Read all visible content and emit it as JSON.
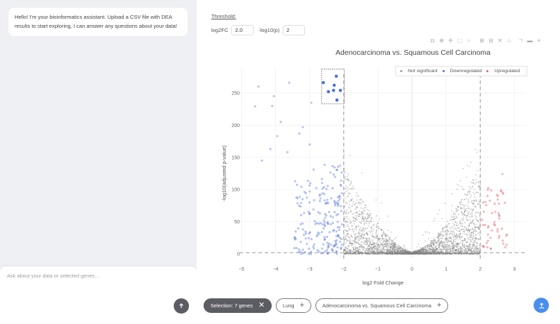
{
  "chat": {
    "assistant_message": "Hello! I'm your bioinformatics assistant. Upload a CSV file with DEA results to start exploring, I can answer any questions about your data!",
    "input_placeholder": "Ask about your data or selected genes...",
    "send_icon": "arrow-up-icon"
  },
  "threshold": {
    "title": "Threshold:",
    "log2fc_label": "log2FC",
    "log2fc_value": "2.0",
    "pval_label": "-log10(p)",
    "pval_value": "2"
  },
  "modebar": [
    "camera-icon",
    "zoom-icon",
    "pan-icon",
    "box-select-icon",
    "lasso-icon",
    "zoom-in-icon",
    "zoom-out-icon",
    "autoscale-icon",
    "reset-axes-icon",
    "spike-lines-icon",
    "hover-closest-icon",
    "hover-compare-icon"
  ],
  "chips": {
    "selection": "Selection: 7 genes",
    "tissue": "Lung",
    "comparison": "Adenocarcinoma vs. Squamous Cell Carcinoma"
  },
  "colors": {
    "not_significant": "#7f7f7f",
    "downregulated": "#4a6fdc",
    "upregulated": "#e0646e",
    "upload_button": "#4a8ff0",
    "dark_chip": "#5c5c63"
  },
  "chart_data": {
    "type": "scatter",
    "title": "Adenocarcinoma vs. Squamous Cell Carcinoma",
    "xlabel": "log2 Fold Change",
    "ylabel": "-log10(adjusted p-value)",
    "xlim": [
      -5,
      3.1
    ],
    "ylim": [
      -5,
      290
    ],
    "x_ticks": [
      "−5",
      "−4",
      "−3",
      "−2",
      "−1",
      "0",
      "1",
      "2",
      "3"
    ],
    "y_ticks": [
      "0",
      "50",
      "100",
      "150",
      "200",
      "250"
    ],
    "threshold_lines": {
      "x": [
        -2,
        2
      ],
      "y": 2
    },
    "legend": [
      "Not significant",
      "Downregulated",
      "Upregulated"
    ],
    "legend_position": "top-right",
    "grid": true,
    "selection_box": {
      "x": [
        -2.65,
        -1.98
      ],
      "y": [
        233,
        287
      ]
    },
    "selected_points": [
      {
        "x": -2.22,
        "y": 276
      },
      {
        "x": -2.6,
        "y": 266
      },
      {
        "x": -2.28,
        "y": 262
      },
      {
        "x": -2.45,
        "y": 252
      },
      {
        "x": -2.3,
        "y": 254
      },
      {
        "x": -2.1,
        "y": 254
      },
      {
        "x": -2.2,
        "y": 239
      }
    ],
    "series": [
      {
        "name": "Not significant",
        "description": "V-shaped dense cloud between log2FC -2 and 2, -log10p 0-200"
      },
      {
        "name": "Downregulated",
        "description": "log2FC < -2, spread -log10p 0-265"
      },
      {
        "name": "Upregulated",
        "description": "log2FC > 2, -log10p 5-125"
      }
    ]
  }
}
